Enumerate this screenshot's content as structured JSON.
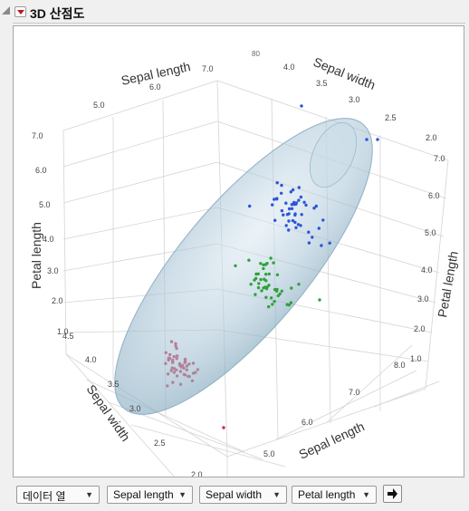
{
  "panel": {
    "title": "3D 산점도"
  },
  "plot": {
    "top_label": "80",
    "axis_labels": {
      "sepal_length_top": "Sepal length",
      "sepal_width_top": "Sepal width",
      "petal_length_left": "Petal length",
      "petal_length_right": "Petal length",
      "sepal_width_bottom": "Sepal width",
      "sepal_length_bottom": "Sepal length"
    },
    "ticks": {
      "sepal_length_top": [
        "5.0",
        "6.0",
        "7.0"
      ],
      "sepal_width_top": [
        "4.0",
        "3.5",
        "3.0",
        "2.5",
        "2.0"
      ],
      "petal_length_left": [
        "7.0",
        "6.0",
        "5.0",
        "4.0",
        "3.0",
        "2.0",
        "1.0"
      ],
      "petal_length_right": [
        "7.0",
        "6.0",
        "5.0",
        "4.0",
        "3.0",
        "2.0",
        "1.0"
      ],
      "sepal_width_bottom": [
        "4.5",
        "4.0",
        "3.5",
        "3.0",
        "2.5",
        "2.0"
      ],
      "sepal_length_bottom": [
        "5.0",
        "6.0",
        "7.0",
        "8.0"
      ]
    },
    "series_colors": {
      "setosa": "#cc2a47",
      "versicolor": "#2fa23a",
      "virginica": "#2d55d6"
    },
    "ellipsoid_color": "#a8c4d6"
  },
  "controls": {
    "dropdowns": [
      {
        "label": "데이터 열"
      },
      {
        "label": "Sepal length"
      },
      {
        "label": "Sepal width"
      },
      {
        "label": "Petal length"
      }
    ],
    "go_icon": "arrow-right-icon"
  }
}
